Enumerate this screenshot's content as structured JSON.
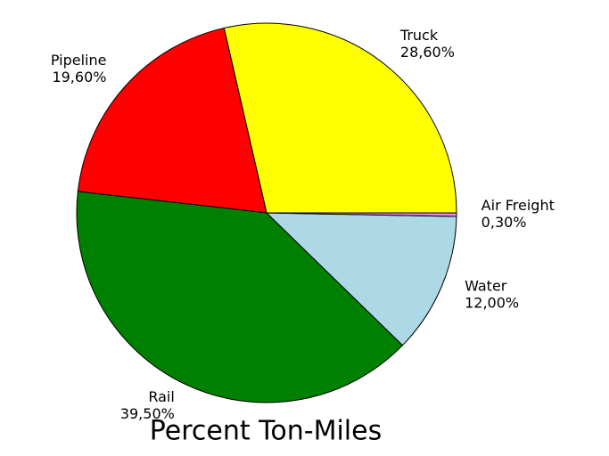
{
  "chart_data": {
    "type": "pie",
    "title": "Percent Ton-Miles",
    "categories": [
      "Truck",
      "Pipeline",
      "Rail",
      "Water",
      "Air Freight"
    ],
    "values": [
      28.6,
      19.6,
      39.5,
      12.0,
      0.3
    ],
    "value_labels": [
      "28,60%",
      "19,60%",
      "39,50%",
      "12,00%",
      "0,30%"
    ],
    "colors": [
      "#ffff00",
      "#ff0000",
      "#008000",
      "#add8e6",
      "#ee82ee"
    ]
  }
}
